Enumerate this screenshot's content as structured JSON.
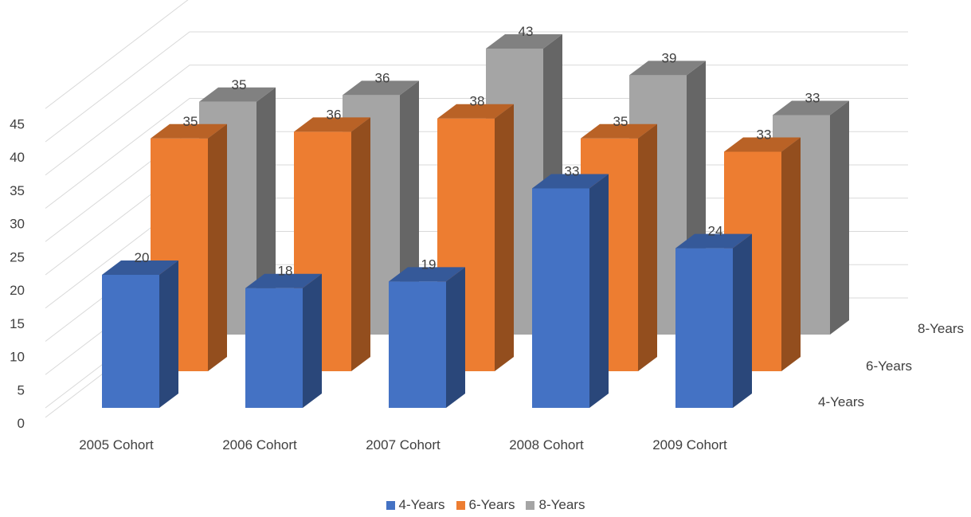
{
  "chart_data": {
    "type": "bar",
    "subtype": "3d-clustered-depth",
    "title": "",
    "xlabel": "",
    "ylabel": "",
    "ylim": [
      0,
      45
    ],
    "yticks": [
      "0",
      "5",
      "10",
      "15",
      "20",
      "25",
      "30",
      "35",
      "40",
      "45"
    ],
    "categories": [
      "2005 Cohort",
      "2006 Cohort",
      "2007 Cohort",
      "2008 Cohort",
      "2009 Cohort"
    ],
    "series": [
      {
        "name": "4-Years",
        "values": [
          20,
          18,
          19,
          33,
          24
        ],
        "labels": [
          "20",
          "18",
          "19",
          "33",
          "24"
        ],
        "color": "#4472C4"
      },
      {
        "name": "6-Years",
        "values": [
          35,
          36,
          38,
          35,
          33
        ],
        "labels": [
          "35",
          "36",
          "38",
          "35",
          "33"
        ],
        "color": "#ED7D31"
      },
      {
        "name": "8-Years",
        "values": [
          35,
          36,
          43,
          39,
          33
        ],
        "labels": [
          "35",
          "36",
          "43",
          "39",
          "33"
        ],
        "color": "#A5A5A5"
      }
    ],
    "grid": true,
    "legend": "bottom",
    "depth_axis_labels": [
      "4-Years",
      "6-Years",
      "8-Years"
    ]
  }
}
